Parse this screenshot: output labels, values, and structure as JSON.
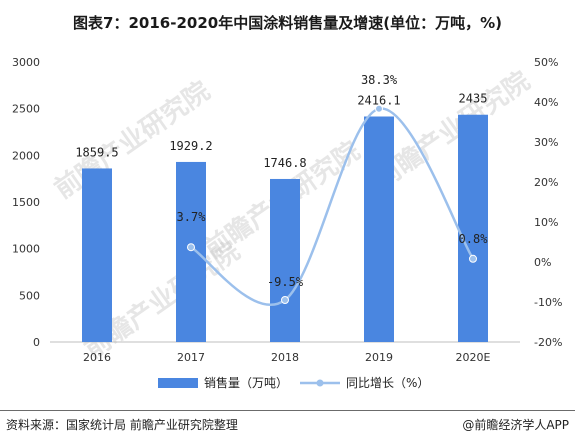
{
  "title": "图表7：2016-2020年中国涂料销售量及增速(单位：万吨，%)",
  "source": "资料来源：国家统计局 前瞻产业研究院整理",
  "brand": "@前瞻经济学人APP",
  "watermark": "前瞻产业研究院",
  "colors": {
    "bar": "#4a86e0",
    "line": "#9cc0ec",
    "axis": "#999999",
    "text": "#333333"
  },
  "chart_data": {
    "type": "bar",
    "categories": [
      "2016",
      "2017",
      "2018",
      "2019",
      "2020E"
    ],
    "series": [
      {
        "name": "销售量（万吨）",
        "type": "bar",
        "axis": "left",
        "values": [
          1859.5,
          1929.2,
          1746.8,
          2416.1,
          2435
        ],
        "labels": [
          "1859.5",
          "1929.2",
          "1746.8",
          "2416.1",
          "2435"
        ]
      },
      {
        "name": "同比增长（%）",
        "type": "line",
        "axis": "right",
        "values": [
          null,
          3.7,
          -9.5,
          38.3,
          0.8
        ],
        "labels": [
          "",
          "3.7%",
          "-9.5%",
          "38.3%",
          "0.8%"
        ]
      }
    ],
    "y_left": {
      "min": 0,
      "max": 3000,
      "ticks": [
        "0",
        "500",
        "1000",
        "1500",
        "2000",
        "2500",
        "3000"
      ]
    },
    "y_right": {
      "min": -20,
      "max": 50,
      "ticks": [
        "-20%",
        "-10%",
        "0%",
        "10%",
        "20%",
        "30%",
        "40%",
        "50%"
      ]
    },
    "legend": {
      "position": "bottom-center"
    },
    "grid": false
  }
}
